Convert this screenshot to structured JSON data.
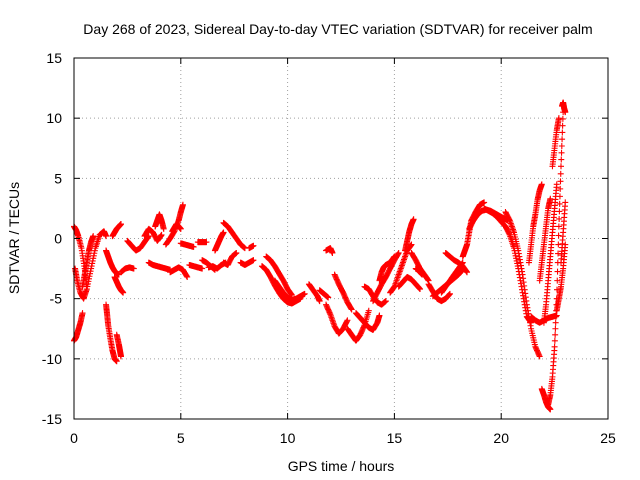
{
  "chart_data": {
    "type": "scatter",
    "title": "Day 268 of 2023, Sidereal Day-to-day VTEC variation (SDTVAR) for receiver palm",
    "xlabel": "GPS time / hours",
    "ylabel": "SDTVAR / TECUs",
    "xlim": [
      0,
      25
    ],
    "ylim": [
      -15,
      15
    ],
    "xticks": [
      0,
      5,
      10,
      15,
      20,
      25
    ],
    "yticks": [
      -15,
      -10,
      -5,
      0,
      5,
      10,
      15
    ],
    "xtick_labels": [
      "0",
      "5",
      "10",
      "15",
      "20",
      "25"
    ],
    "ytick_labels": [
      "-15",
      "-10",
      "-5",
      "0",
      "5",
      "10",
      "15"
    ],
    "grid": true,
    "marker": "+",
    "color": "#ff0000",
    "series_segments": [
      {
        "x": [
          0.0,
          0.1,
          0.2,
          0.3,
          0.4
        ],
        "y": [
          -8.5,
          -8.2,
          -7.6,
          -7.0,
          -6.2
        ]
      },
      {
        "x": [
          0.0,
          0.1,
          0.2,
          0.35,
          0.5,
          0.6
        ],
        "y": [
          1.0,
          0.7,
          0.2,
          -0.8,
          -2.5,
          -4.0
        ]
      },
      {
        "x": [
          0.05,
          0.15,
          0.3,
          0.45,
          0.6,
          0.8,
          1.0,
          1.2,
          1.4,
          1.5
        ],
        "y": [
          -2.5,
          -3.5,
          -4.5,
          -5.0,
          -4.2,
          -2.5,
          -0.8,
          0.3,
          0.6,
          0.2
        ]
      },
      {
        "x": [
          0.4,
          0.5,
          0.6,
          0.7,
          0.8,
          0.9
        ],
        "y": [
          -4.0,
          -3.0,
          -2.0,
          -1.0,
          -0.3,
          0.2
        ]
      },
      {
        "x": [
          1.5,
          1.6,
          1.7,
          1.8,
          1.9,
          2.0,
          2.1
        ],
        "y": [
          -1.0,
          -1.5,
          -2.0,
          -2.4,
          -2.7,
          -2.9,
          -3.0
        ]
      },
      {
        "x": [
          1.5,
          1.55,
          1.6,
          1.7,
          1.8,
          1.9,
          2.0
        ],
        "y": [
          -5.5,
          -6.3,
          -7.2,
          -8.3,
          -9.3,
          -10.0,
          -10.2
        ]
      },
      {
        "x": [
          2.0,
          2.1,
          2.15,
          2.2
        ],
        "y": [
          -8.0,
          -8.8,
          -9.3,
          -9.8
        ]
      },
      {
        "x": [
          1.8,
          1.9,
          2.0,
          2.1,
          2.2
        ],
        "y": [
          0.2,
          0.5,
          0.8,
          1.0,
          1.2
        ]
      },
      {
        "x": [
          1.9,
          2.0,
          2.1,
          2.2,
          2.3
        ],
        "y": [
          -3.2,
          -3.6,
          -4.0,
          -4.3,
          -4.5
        ]
      },
      {
        "x": [
          2.2,
          2.4,
          2.6,
          2.8
        ],
        "y": [
          -2.8,
          -2.5,
          -2.4,
          -2.5
        ]
      },
      {
        "x": [
          2.5,
          2.7,
          2.9,
          3.1,
          3.3,
          3.5
        ],
        "y": [
          -0.2,
          -0.6,
          -1.0,
          -0.8,
          -0.3,
          0.2
        ]
      },
      {
        "x": [
          3.3,
          3.5,
          3.7,
          3.9,
          4.1
        ],
        "y": [
          0.2,
          0.8,
          0.5,
          -0.2,
          0.3
        ]
      },
      {
        "x": [
          3.5,
          3.7,
          3.9,
          4.1,
          4.3,
          4.5
        ],
        "y": [
          -2.0,
          -2.2,
          -2.3,
          -2.4,
          -2.5,
          -2.6
        ]
      },
      {
        "x": [
          3.8,
          3.9,
          4.0,
          4.1,
          4.2
        ],
        "y": [
          1.0,
          1.5,
          2.0,
          1.5,
          0.8
        ]
      },
      {
        "x": [
          4.3,
          4.5,
          4.7,
          4.9,
          5.0,
          5.1
        ],
        "y": [
          -0.5,
          0.0,
          0.6,
          1.5,
          2.2,
          2.8
        ]
      },
      {
        "x": [
          4.5,
          4.7,
          4.9,
          5.1,
          5.3
        ],
        "y": [
          -2.8,
          -2.6,
          -2.4,
          -2.6,
          -3.2
        ]
      },
      {
        "x": [
          4.6,
          4.7,
          4.8,
          4.9,
          5.0
        ],
        "y": [
          0.6,
          0.9,
          1.2,
          1.0,
          0.8
        ]
      },
      {
        "x": [
          5.0,
          5.2,
          5.4,
          5.6
        ],
        "y": [
          -0.4,
          -0.5,
          -0.6,
          -0.7
        ]
      },
      {
        "x": [
          5.8,
          6.0,
          6.2
        ],
        "y": [
          -0.3,
          -0.3,
          -0.3
        ]
      },
      {
        "x": [
          5.4,
          5.6,
          5.8,
          6.0
        ],
        "y": [
          -2.2,
          -2.3,
          -2.4,
          -2.5
        ]
      },
      {
        "x": [
          6.0,
          6.2,
          6.4,
          6.6
        ],
        "y": [
          -1.8,
          -2.0,
          -2.3,
          -2.6
        ]
      },
      {
        "x": [
          6.3,
          6.5,
          6.7,
          6.9,
          7.1
        ],
        "y": [
          -2.4,
          -2.3,
          -2.5,
          -2.2,
          -2.0
        ]
      },
      {
        "x": [
          6.6,
          6.7,
          6.8,
          6.9,
          7.0
        ],
        "y": [
          -1.0,
          -0.6,
          -0.2,
          0.2,
          0.5
        ]
      },
      {
        "x": [
          7.0,
          7.2,
          7.4,
          7.6,
          7.8,
          8.0
        ],
        "y": [
          1.3,
          1.0,
          0.5,
          0.0,
          -0.5,
          -0.8
        ]
      },
      {
        "x": [
          7.0,
          7.2,
          7.4,
          7.6
        ],
        "y": [
          -2.0,
          -2.2,
          -1.5,
          -1.2
        ]
      },
      {
        "x": [
          7.8,
          8.0,
          8.2,
          8.4
        ],
        "y": [
          -2.0,
          -2.2,
          -2.0,
          -1.8
        ]
      },
      {
        "x": [
          8.2,
          8.4
        ],
        "y": [
          -0.8,
          -0.6
        ]
      },
      {
        "x": [
          8.8,
          9.0,
          9.2,
          9.4,
          9.6,
          9.8,
          10.0,
          10.2,
          10.4,
          10.6
        ],
        "y": [
          -2.3,
          -2.6,
          -3.2,
          -3.9,
          -4.5,
          -5.0,
          -5.3,
          -5.4,
          -5.2,
          -5.0
        ]
      },
      {
        "x": [
          9.0,
          9.2,
          9.4,
          9.6,
          9.8,
          10.0,
          10.2
        ],
        "y": [
          -1.5,
          -1.8,
          -2.3,
          -2.9,
          -3.5,
          -4.2,
          -4.7
        ]
      },
      {
        "x": [
          9.4,
          9.6,
          9.8,
          10.0,
          10.2,
          10.4,
          10.6,
          10.8
        ],
        "y": [
          -3.5,
          -4.0,
          -4.5,
          -4.9,
          -5.1,
          -5.0,
          -4.8,
          -4.6
        ]
      },
      {
        "x": [
          11.0,
          11.2,
          11.4,
          11.5
        ],
        "y": [
          -3.8,
          -4.3,
          -4.8,
          -5.2
        ]
      },
      {
        "x": [
          11.5,
          11.7,
          11.9
        ],
        "y": [
          -4.3,
          -4.6,
          -4.9
        ]
      },
      {
        "x": [
          11.8,
          12.0,
          12.1
        ],
        "y": [
          -1.0,
          -0.8,
          -1.2
        ]
      },
      {
        "x": [
          11.8,
          12.0,
          12.2,
          12.4,
          12.6,
          12.8
        ],
        "y": [
          -5.5,
          -6.3,
          -7.3,
          -7.9,
          -7.5,
          -6.8
        ]
      },
      {
        "x": [
          12.2,
          12.4,
          12.6,
          12.8,
          13.0
        ],
        "y": [
          -3.0,
          -3.8,
          -4.5,
          -5.3,
          -5.9
        ]
      },
      {
        "x": [
          12.8,
          13.0,
          13.2,
          13.4,
          13.6,
          13.8
        ],
        "y": [
          -7.5,
          -8.0,
          -8.5,
          -8.0,
          -7.2,
          -6.0
        ]
      },
      {
        "x": [
          13.2,
          13.4,
          13.6,
          13.8,
          14.0,
          14.2,
          14.3
        ],
        "y": [
          -6.2,
          -6.6,
          -7.0,
          -7.4,
          -7.6,
          -7.0,
          -6.4
        ]
      },
      {
        "x": [
          13.6,
          13.8,
          14.0,
          14.2,
          14.4,
          14.6
        ],
        "y": [
          -4.0,
          -4.2,
          -4.8,
          -5.3,
          -5.5,
          -5.2
        ]
      },
      {
        "x": [
          14.0,
          14.2,
          14.4,
          14.6,
          14.8,
          15.0,
          15.2
        ],
        "y": [
          -5.2,
          -4.5,
          -3.8,
          -3.2,
          -2.5,
          -1.8,
          -1.2
        ]
      },
      {
        "x": [
          14.3,
          14.4,
          14.5,
          14.6,
          14.8,
          15.0
        ],
        "y": [
          -3.5,
          -2.8,
          -2.4,
          -2.2,
          -2.0,
          -1.5
        ]
      },
      {
        "x": [
          14.8,
          15.0,
          15.2,
          15.4,
          15.6,
          15.8
        ],
        "y": [
          -4.5,
          -4.0,
          -3.0,
          -2.0,
          -1.0,
          -0.5
        ]
      },
      {
        "x": [
          15.2,
          15.4,
          15.6,
          15.8,
          16.0,
          16.2
        ],
        "y": [
          -4.0,
          -3.6,
          -3.2,
          -3.4,
          -3.8,
          -4.2
        ]
      },
      {
        "x": [
          15.5,
          15.6,
          15.7,
          15.8,
          15.9
        ],
        "y": [
          -1.0,
          -0.2,
          0.6,
          1.2,
          1.6
        ]
      },
      {
        "x": [
          15.8,
          16.0,
          16.2,
          16.4,
          16.6
        ],
        "y": [
          -1.2,
          -1.8,
          -2.5,
          -3.0,
          -3.5
        ]
      },
      {
        "x": [
          16.0,
          16.1,
          16.2,
          16.3
        ],
        "y": [
          -2.5,
          -2.6,
          -2.8,
          -3.0
        ]
      },
      {
        "x": [
          16.6,
          16.8,
          17.0,
          17.2,
          17.4,
          17.6
        ],
        "y": [
          -3.8,
          -4.4,
          -5.0,
          -5.2,
          -5.0,
          -4.6
        ]
      },
      {
        "x": [
          16.8,
          17.0,
          17.2,
          17.4,
          17.6,
          17.8,
          18.0,
          18.2
        ],
        "y": [
          -4.8,
          -4.5,
          -4.2,
          -3.9,
          -3.6,
          -3.3,
          -3.0,
          -2.6
        ]
      },
      {
        "x": [
          17.2,
          17.4,
          17.6,
          17.8,
          18.0,
          18.2
        ],
        "y": [
          -4.5,
          -4.0,
          -3.5,
          -3.0,
          -2.5,
          -2.0
        ]
      },
      {
        "x": [
          17.4,
          17.6,
          17.8,
          18.0,
          18.2,
          18.4
        ],
        "y": [
          -1.2,
          -1.5,
          -1.8,
          -2.0,
          -2.3,
          -2.8
        ]
      },
      {
        "x": [
          18.2,
          18.3,
          18.4,
          18.5,
          18.6,
          18.8,
          19.0,
          19.2
        ],
        "y": [
          -1.5,
          -1.0,
          -0.5,
          0.5,
          1.5,
          2.2,
          2.8,
          3.0
        ]
      },
      {
        "x": [
          18.5,
          18.7,
          18.9,
          19.1,
          19.3,
          19.5,
          19.7,
          19.9,
          20.1,
          20.3
        ],
        "y": [
          0.8,
          1.5,
          2.0,
          2.3,
          2.4,
          2.3,
          2.1,
          1.9,
          1.7,
          1.5
        ]
      },
      {
        "x": [
          19.2,
          19.4,
          19.6,
          19.8,
          20.0,
          20.2,
          20.4,
          20.6,
          20.8,
          21.0,
          21.2,
          21.4
        ],
        "y": [
          2.5,
          2.3,
          2.1,
          1.8,
          1.4,
          1.0,
          0.3,
          -0.8,
          -2.5,
          -4.5,
          -6.5,
          -7.0
        ]
      },
      {
        "x": [
          20.2,
          20.4,
          20.6,
          20.8,
          21.0,
          21.2,
          21.4,
          21.6,
          21.8
        ],
        "y": [
          2.2,
          1.5,
          0.5,
          -1.0,
          -3.0,
          -5.5,
          -7.5,
          -9.0,
          -9.8
        ]
      },
      {
        "x": [
          21.3,
          21.4,
          21.5,
          21.6,
          21.7,
          21.8,
          21.9
        ],
        "y": [
          -2.0,
          -0.5,
          1.0,
          2.0,
          3.2,
          4.0,
          4.5
        ]
      },
      {
        "x": [
          21.4,
          21.6,
          21.8,
          22.0,
          22.2,
          22.4,
          22.6
        ],
        "y": [
          -6.5,
          -6.8,
          -7.0,
          -6.8,
          -6.6,
          -6.5,
          -6.4
        ]
      },
      {
        "x": [
          21.8,
          21.9,
          22.0,
          22.1,
          22.2,
          22.3
        ],
        "y": [
          -3.5,
          -2.0,
          -0.5,
          1.0,
          2.5,
          3.3
        ]
      },
      {
        "x": [
          21.9,
          22.0,
          22.1,
          22.2,
          22.3
        ],
        "y": [
          -12.5,
          -13.0,
          -13.6,
          -14.0,
          -14.2
        ]
      },
      {
        "x": [
          22.0,
          22.1,
          22.2,
          22.3,
          22.4,
          22.5,
          22.6
        ],
        "y": [
          -7.0,
          -5.5,
          -3.5,
          -1.5,
          0.5,
          2.5,
          4.5
        ]
      },
      {
        "x": [
          22.2,
          22.3,
          22.4,
          22.5,
          22.6,
          22.7,
          22.8,
          22.9
        ],
        "y": [
          -13.8,
          -13.0,
          -11.5,
          -9.0,
          -5.0,
          1.0,
          6.0,
          10.5
        ]
      },
      {
        "x": [
          22.4,
          22.5,
          22.6,
          22.7
        ],
        "y": [
          6.0,
          7.5,
          9.0,
          10.0
        ]
      },
      {
        "x": [
          22.6,
          22.7,
          22.8,
          22.9,
          23.0
        ],
        "y": [
          -6.0,
          -5.0,
          -4.0,
          -2.5,
          -0.5
        ]
      },
      {
        "x": [
          22.8,
          22.9,
          23.0
        ],
        "y": [
          -2.0,
          0.5,
          3.0
        ]
      },
      {
        "x": [
          22.85,
          22.9,
          22.95,
          23.0
        ],
        "y": [
          11.0,
          11.3,
          10.8,
          10.5
        ]
      }
    ]
  }
}
